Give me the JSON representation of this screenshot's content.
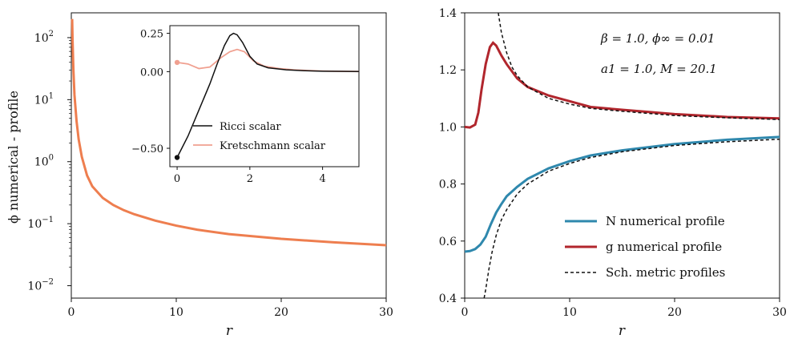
{
  "colors": {
    "orange": "#ee7e4f",
    "blue": "#2f88ad",
    "red": "#b1262d",
    "black": "#111111",
    "salmon": "#f0a090"
  },
  "chart_data": [
    {
      "type": "line",
      "panel": "left",
      "yscale": "log",
      "title": "",
      "xlabel": "r",
      "ylabel": "ϕ numerical - profile",
      "xlim": [
        0,
        30
      ],
      "ylim_log10": [
        -2.2,
        2.4
      ],
      "xticks": [
        "0",
        "10",
        "20",
        "30"
      ],
      "yticks": [
        {
          "base": "10",
          "exp": "−2",
          "log10": -2
        },
        {
          "base": "10",
          "exp": "−1",
          "log10": -1
        },
        {
          "base": "10",
          "exp": "0",
          "log10": 0
        },
        {
          "base": "10",
          "exp": "1",
          "log10": 1
        },
        {
          "base": "10",
          "exp": "2",
          "log10": 2
        }
      ],
      "series": [
        {
          "name": "phi residual",
          "x": [
            0.08,
            0.12,
            0.2,
            0.3,
            0.5,
            0.7,
            1.0,
            1.5,
            2.0,
            3.0,
            4.0,
            5.0,
            6.0,
            8.0,
            10.0,
            12.0,
            15.0,
            20.0,
            25.0,
            30.0
          ],
          "y": [
            200,
            90,
            30,
            12,
            4.5,
            2.3,
            1.2,
            0.6,
            0.4,
            0.26,
            0.2,
            0.165,
            0.142,
            0.112,
            0.093,
            0.08,
            0.068,
            0.057,
            0.05,
            0.045
          ]
        }
      ],
      "inset": {
        "xlim": [
          -0.2,
          5
        ],
        "ylim": [
          -0.62,
          0.3
        ],
        "xticks": [
          "0",
          "2",
          "4"
        ],
        "yticks": [
          "0.25",
          "0.00",
          "−0.50"
        ],
        "ytick_values": [
          0.25,
          0.0,
          -0.5
        ],
        "xtick_values": [
          0,
          2,
          4
        ],
        "legend": [
          "Ricci scalar",
          "Kretschmann scalar"
        ],
        "series": [
          {
            "name": "Ricci scalar",
            "x": [
              0,
              0.3,
              0.6,
              0.9,
              1.1,
              1.3,
              1.45,
              1.55,
              1.65,
              1.8,
              2.0,
              2.2,
              2.5,
              3.0,
              3.5,
              4.0,
              4.5,
              5.0
            ],
            "y": [
              -0.56,
              -0.42,
              -0.25,
              -0.08,
              0.05,
              0.17,
              0.235,
              0.25,
              0.24,
              0.19,
              0.1,
              0.05,
              0.025,
              0.012,
              0.006,
              0.003,
              0.002,
              0.001
            ]
          },
          {
            "name": "Kretschmann scalar",
            "x": [
              0,
              0.3,
              0.6,
              0.9,
              1.2,
              1.45,
              1.65,
              1.85,
              2.1,
              2.4,
              2.8,
              3.2,
              3.6,
              4.0,
              4.5,
              5.0
            ],
            "y": [
              0.06,
              0.05,
              0.02,
              0.03,
              0.09,
              0.13,
              0.145,
              0.13,
              0.07,
              0.035,
              0.02,
              0.012,
              0.007,
              0.004,
              0.002,
              0.001
            ]
          }
        ],
        "markers": [
          {
            "series": "Ricci scalar",
            "x": 0,
            "y": -0.56
          },
          {
            "series": "Kretschmann scalar",
            "x": 0,
            "y": 0.06
          }
        ]
      }
    },
    {
      "type": "line",
      "panel": "right",
      "title": "",
      "xlabel": "r",
      "ylabel": "",
      "xlim": [
        0,
        30
      ],
      "ylim": [
        0.4,
        1.4
      ],
      "xticks": [
        "0",
        "10",
        "20",
        "30"
      ],
      "xtick_values": [
        0,
        10,
        20,
        30
      ],
      "yticks": [
        "0.4",
        "0.6",
        "0.8",
        "1.0",
        "1.2",
        "1.4"
      ],
      "ytick_values": [
        0.4,
        0.6,
        0.8,
        1.0,
        1.2,
        1.4
      ],
      "annotations": [
        "β = 1.0,   ϕ∞ = 0.01",
        "a1 = 1.0,   M = 20.1"
      ],
      "legend": [
        "N numerical profile",
        "g numerical profile",
        "Sch. metric profiles"
      ],
      "series": [
        {
          "name": "N numerical profile",
          "x": [
            0,
            0.5,
            1.0,
            1.5,
            2.0,
            2.5,
            3.0,
            3.5,
            4.0,
            5.0,
            6.0,
            8.0,
            10.0,
            12.0,
            15.0,
            20.0,
            25.0,
            30.0
          ],
          "y": [
            0.563,
            0.565,
            0.572,
            0.588,
            0.615,
            0.66,
            0.7,
            0.73,
            0.757,
            0.79,
            0.818,
            0.855,
            0.88,
            0.9,
            0.918,
            0.94,
            0.955,
            0.965
          ]
        },
        {
          "name": "g numerical profile",
          "x": [
            0,
            0.5,
            1.0,
            1.3,
            1.6,
            2.0,
            2.4,
            2.7,
            3.0,
            3.5,
            4.0,
            5.0,
            6.0,
            8.0,
            10.0,
            12.0,
            15.0,
            20.0,
            25.0,
            30.0
          ],
          "y": [
            1.0,
            0.998,
            1.008,
            1.05,
            1.13,
            1.22,
            1.28,
            1.295,
            1.285,
            1.25,
            1.22,
            1.17,
            1.14,
            1.11,
            1.09,
            1.07,
            1.06,
            1.045,
            1.035,
            1.03
          ]
        },
        {
          "name": "Sch. metric profiles N",
          "x": [
            1.85,
            2.0,
            2.3,
            2.6,
            3.0,
            3.5,
            4.0,
            5.0,
            6.0,
            8.0,
            10.0,
            12.0,
            15.0,
            20.0,
            25.0,
            30.0
          ],
          "y": [
            0.4,
            0.43,
            0.5,
            0.56,
            0.62,
            0.675,
            0.71,
            0.765,
            0.8,
            0.845,
            0.872,
            0.893,
            0.913,
            0.935,
            0.948,
            0.957
          ]
        },
        {
          "name": "Sch. metric profiles g",
          "x": [
            3.2,
            3.5,
            4.0,
            4.5,
            5.0,
            6.0,
            7.0,
            8.0,
            10.0,
            12.0,
            15.0,
            20.0,
            25.0,
            30.0
          ],
          "y": [
            1.4,
            1.33,
            1.26,
            1.21,
            1.18,
            1.14,
            1.12,
            1.1,
            1.08,
            1.065,
            1.055,
            1.04,
            1.032,
            1.026
          ]
        }
      ]
    }
  ]
}
